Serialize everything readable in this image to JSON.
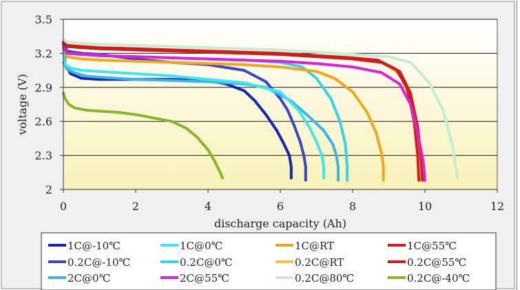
{
  "chart_data": {
    "type": "line",
    "title": "",
    "xlabel": "discharge capacity (Ah)",
    "ylabel": "voltage (V)",
    "xlim": [
      0,
      12
    ],
    "ylim": [
      2,
      3.5
    ],
    "x_ticks": [
      "0",
      "2",
      "4",
      "6",
      "8",
      "10",
      "12"
    ],
    "y_ticks": [
      "2",
      "2.3",
      "2.6",
      "2.9",
      "3.2",
      "3.5"
    ],
    "grid": "horizontal",
    "legend_position": "bottom",
    "series": [
      {
        "name": "1C@-10℃",
        "color": "#1226b4",
        "x": [
          0,
          0.05,
          0.2,
          0.5,
          1,
          2,
          3,
          4,
          4.5,
          5,
          5.3,
          5.6,
          5.9,
          6.1,
          6.25,
          6.3,
          6.3
        ],
        "y": [
          3.3,
          3.1,
          3.02,
          2.98,
          2.97,
          2.97,
          2.97,
          2.96,
          2.93,
          2.87,
          2.78,
          2.66,
          2.52,
          2.4,
          2.3,
          2.2,
          2.1
        ]
      },
      {
        "name": "0.2C@-10℃",
        "color": "#3a45c8",
        "x": [
          0,
          0.1,
          0.5,
          1,
          2,
          3,
          4,
          5,
          5.6,
          6,
          6.2,
          6.4,
          6.55,
          6.65,
          6.7,
          6.7
        ],
        "y": [
          3.28,
          3.22,
          3.2,
          3.19,
          3.15,
          3.12,
          3.1,
          3.05,
          2.95,
          2.8,
          2.7,
          2.55,
          2.42,
          2.3,
          2.2,
          2.08
        ]
      },
      {
        "name": "2C@0℃",
        "color": "#38b6e8",
        "x": [
          0,
          0.1,
          0.3,
          0.6,
          1,
          2,
          3,
          4,
          5,
          5.6,
          6.3,
          6.8,
          7.2,
          7.45,
          7.55,
          7.6,
          7.6
        ],
        "y": [
          3.12,
          3.06,
          3.03,
          3.0,
          2.99,
          2.97,
          2.96,
          2.95,
          2.93,
          2.9,
          2.78,
          2.64,
          2.52,
          2.4,
          2.3,
          2.2,
          2.08
        ]
      },
      {
        "name": "1C@0℃",
        "color": "#3ee6f2",
        "x": [
          0,
          0.05,
          0.2,
          0.5,
          1,
          2,
          3,
          4,
          5,
          6,
          6.5,
          6.8,
          7.0,
          7.15,
          7.2,
          7.2
        ],
        "y": [
          3.2,
          3.1,
          3.07,
          3.05,
          3.04,
          3.02,
          3.0,
          2.97,
          2.94,
          2.86,
          2.7,
          2.55,
          2.42,
          2.3,
          2.2,
          2.1
        ]
      },
      {
        "name": "0.2C@0℃",
        "color": "#36d4e4",
        "x": [
          0,
          0.1,
          0.5,
          1,
          2,
          3,
          4,
          5,
          6,
          6.6,
          7.0,
          7.4,
          7.65,
          7.8,
          7.85,
          7.85
        ],
        "y": [
          3.25,
          3.2,
          3.19,
          3.18,
          3.17,
          3.16,
          3.15,
          3.14,
          3.12,
          3.08,
          2.98,
          2.8,
          2.6,
          2.4,
          2.2,
          2.08
        ]
      },
      {
        "name": "1C@RT",
        "color": "#f0a818",
        "x": [
          0,
          0.1,
          0.5,
          1,
          2,
          3,
          4,
          5,
          6,
          7,
          7.5,
          8.0,
          8.4,
          8.65,
          8.8,
          8.85,
          8.85
        ],
        "y": [
          3.24,
          3.17,
          3.15,
          3.14,
          3.13,
          3.12,
          3.11,
          3.1,
          3.08,
          3.04,
          2.98,
          2.86,
          2.68,
          2.5,
          2.32,
          2.2,
          2.08
        ]
      },
      {
        "name": "0.2C@RT",
        "color": "#f2c63a",
        "x": [
          0,
          0.1,
          0.5,
          1,
          2,
          3,
          4,
          5,
          6,
          7,
          8,
          8.8,
          9.3,
          9.6,
          9.75,
          9.85,
          9.88
        ],
        "y": [
          3.3,
          3.27,
          3.26,
          3.25,
          3.24,
          3.23,
          3.22,
          3.21,
          3.2,
          3.18,
          3.16,
          3.12,
          3.02,
          2.8,
          2.5,
          2.2,
          2.08
        ]
      },
      {
        "name": "1C@55℃",
        "color": "#d81c1c",
        "x": [
          0,
          0.1,
          0.5,
          1,
          2,
          3,
          4,
          5,
          6,
          7,
          8,
          8.7,
          9.2,
          9.5,
          9.7,
          9.8,
          9.83
        ],
        "y": [
          3.3,
          3.27,
          3.26,
          3.25,
          3.24,
          3.23,
          3.22,
          3.21,
          3.2,
          3.18,
          3.16,
          3.14,
          3.06,
          2.9,
          2.6,
          2.3,
          2.08
        ]
      },
      {
        "name": "0.2C@55℃",
        "color": "#c8201e",
        "x": [
          0,
          0.1,
          0.5,
          1,
          2,
          3,
          4,
          5,
          6,
          7,
          8,
          8.8,
          9.3,
          9.6,
          9.8,
          9.9,
          9.93
        ],
        "y": [
          3.29,
          3.26,
          3.25,
          3.24,
          3.23,
          3.22,
          3.21,
          3.2,
          3.19,
          3.17,
          3.15,
          3.12,
          3.04,
          2.85,
          2.55,
          2.25,
          2.08
        ]
      },
      {
        "name": "2C@55℃",
        "color": "#e020d8",
        "x": [
          0,
          0.1,
          0.5,
          1,
          2,
          3,
          4,
          5,
          6,
          7,
          8,
          8.8,
          9.3,
          9.6,
          9.8,
          9.95,
          10.0
        ],
        "y": [
          3.25,
          3.2,
          3.19,
          3.18,
          3.17,
          3.16,
          3.15,
          3.14,
          3.13,
          3.11,
          3.08,
          3.03,
          2.93,
          2.75,
          2.5,
          2.25,
          2.08
        ]
      },
      {
        "name": "0.2C@80℃",
        "color": "#c8ecd0",
        "x": [
          0,
          0.1,
          0.5,
          1,
          2,
          3,
          4,
          5,
          6,
          7,
          8,
          9,
          9.6,
          10.1,
          10.5,
          10.75,
          10.9
        ],
        "y": [
          3.32,
          3.3,
          3.29,
          3.28,
          3.27,
          3.26,
          3.25,
          3.24,
          3.23,
          3.21,
          3.19,
          3.17,
          3.12,
          2.95,
          2.7,
          2.4,
          2.1
        ]
      },
      {
        "name": "0.2C@-40℃",
        "color": "#8ab528",
        "x": [
          0,
          0.05,
          0.15,
          0.3,
          0.6,
          1,
          1.5,
          2,
          2.5,
          3,
          3.4,
          3.7,
          4.0,
          4.2,
          4.35,
          4.4
        ],
        "y": [
          2.85,
          2.8,
          2.75,
          2.72,
          2.7,
          2.69,
          2.68,
          2.66,
          2.63,
          2.6,
          2.54,
          2.46,
          2.35,
          2.24,
          2.14,
          2.1
        ]
      }
    ]
  },
  "legend_order": [
    "1C@-10℃",
    "1C@0℃",
    "1C@RT",
    "1C@55℃",
    "0.2C@-10℃",
    "0.2C@0℃",
    "0.2C@RT",
    "0.2C@55℃",
    "2C@0℃",
    "2C@55℃",
    "0.2C@80℃",
    "0.2C@-40℃"
  ],
  "colors": {
    "plot_gradient_top": "#ffffff",
    "plot_gradient_bottom": "#f8f2b8",
    "frame_bg": "#f0f0f0",
    "frame_border": "#8a8a8a",
    "gridline": "#1a1a1a",
    "text": "#222222"
  }
}
